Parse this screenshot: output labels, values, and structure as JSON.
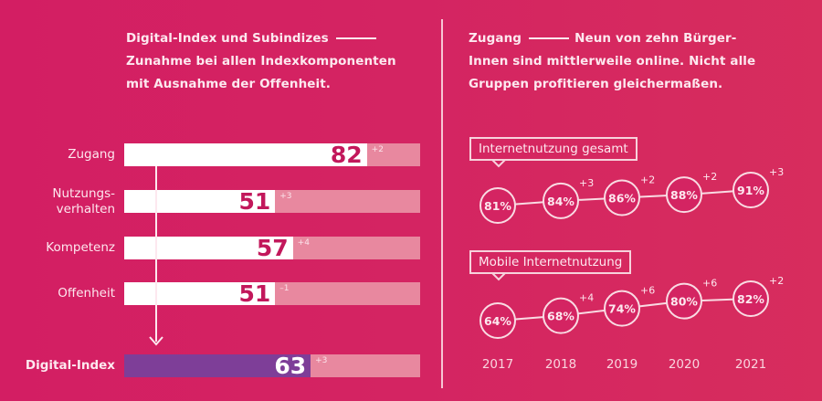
{
  "left_panel": {
    "heading_title": "Digital-Index und Subindizes",
    "heading_line2": "Zunahme bei allen Indexkomponenten",
    "heading_line3": "mit Ausnahme der Offenheit."
  },
  "right_panel": {
    "heading_title": "Zugang",
    "heading_line1": "Neun von zehn Bürger-",
    "heading_line2": "Innen sind mittlerweile online. Nicht alle",
    "heading_line3": "Gruppen profitieren gleichermaßen."
  },
  "colors": {
    "background": "#d42462",
    "bar_fill": "#ffffff",
    "bar_track": "#e8889f",
    "index_fill": "#7e3e98",
    "value_text": "#c2185b"
  },
  "chart_data": [
    {
      "type": "bar",
      "orientation": "horizontal",
      "title": "Digital-Index und Subindizes",
      "categories": [
        "Zugang",
        "Nutzungsverhalten",
        "Kompetenz",
        "Offenheit",
        "Digital-Index"
      ],
      "category_labels": [
        [
          "Zugang"
        ],
        [
          "Nutzungs-",
          "verhalten"
        ],
        [
          "Kompetenz"
        ],
        [
          "Offenheit"
        ],
        [
          "Digital-Index"
        ]
      ],
      "values": [
        82,
        51,
        57,
        51,
        63
      ],
      "value_labels": [
        "82",
        "51",
        "57",
        "51",
        "63"
      ],
      "changes": [
        "+2",
        "+3",
        "+4",
        "–1",
        "+3"
      ],
      "xlim": [
        0,
        100
      ],
      "highlight": "Digital-Index"
    },
    {
      "type": "line",
      "x": [
        "2017",
        "2018",
        "2019",
        "2020",
        "2021"
      ],
      "ylabel": "",
      "series": [
        {
          "name": "Internetnutzung gesamt",
          "values": [
            81,
            84,
            86,
            88,
            91
          ],
          "value_labels": [
            "81%",
            "84%",
            "86%",
            "88%",
            "91%"
          ],
          "changes": [
            "",
            "+3",
            "+2",
            "+2",
            "+3"
          ]
        },
        {
          "name": "Mobile Internetnutzung",
          "values": [
            64,
            68,
            74,
            80,
            82
          ],
          "value_labels": [
            "64%",
            "68%",
            "74%",
            "80%",
            "82%"
          ],
          "changes": [
            "",
            "+4",
            "+6",
            "+6",
            "+2"
          ]
        }
      ]
    }
  ]
}
